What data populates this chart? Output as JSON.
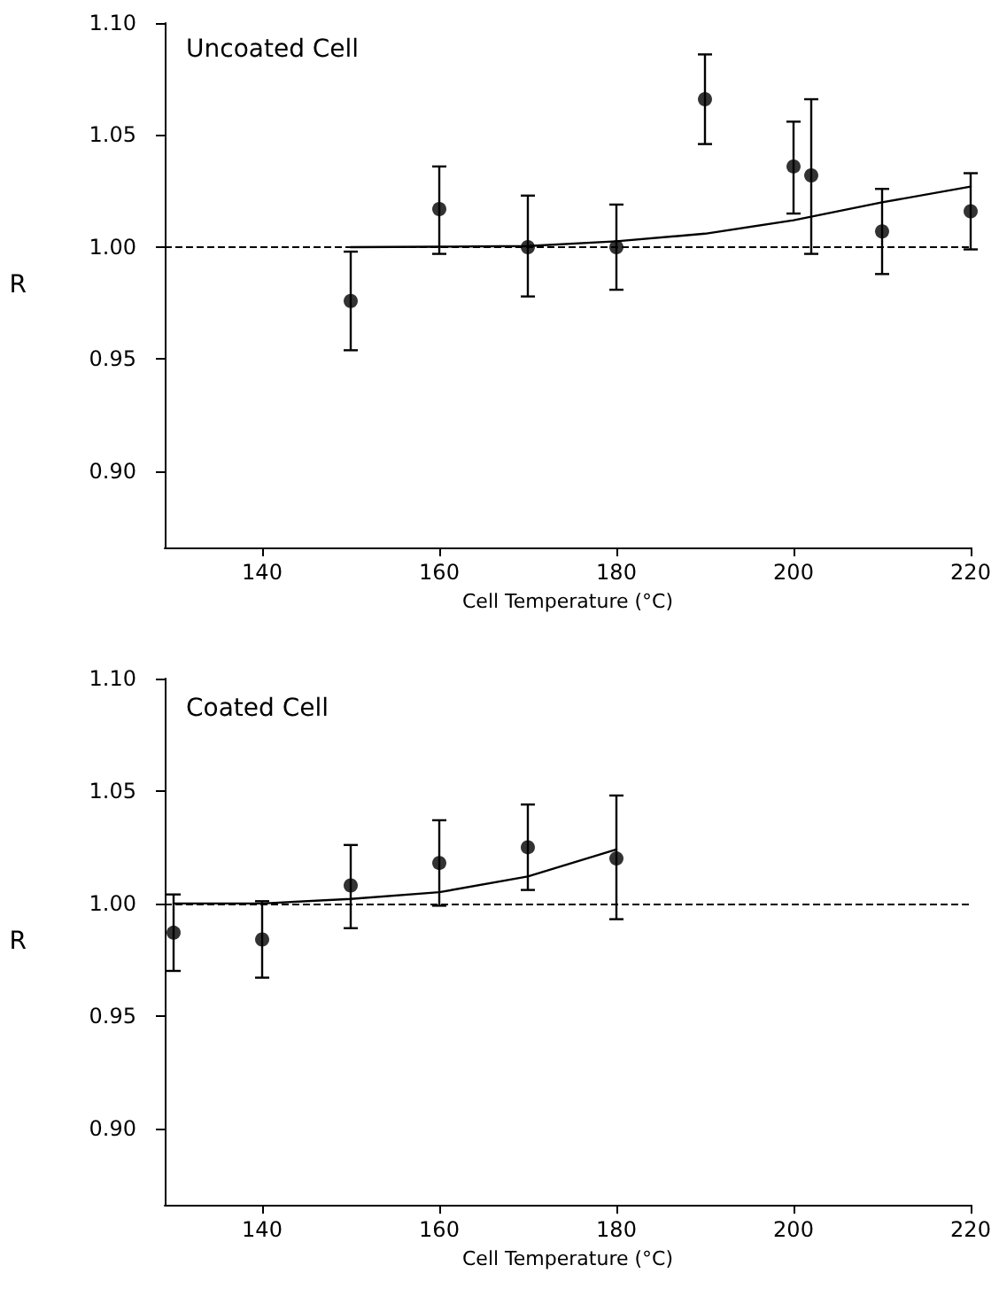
{
  "chart_data": [
    {
      "type": "scatter",
      "title": "Uncoated Cell",
      "xlabel": "Cell Temperature (°C)",
      "ylabel": "R",
      "xlim": [
        129,
        220
      ],
      "ylim": [
        0.866,
        1.1
      ],
      "xticks": [
        140,
        160,
        180,
        200,
        220
      ],
      "yticks": [
        {
          "value": 0.9,
          "label": "0.90"
        },
        {
          "value": 0.95,
          "label": "0.95"
        },
        {
          "value": 1.0,
          "label": "1.00"
        },
        {
          "value": 1.05,
          "label": "1.05"
        },
        {
          "value": 1.1,
          "label": "1.10"
        }
      ],
      "grid": false,
      "ref_lines": [
        {
          "axis": "y",
          "value": 1.0,
          "line_style": "dashed",
          "color": "#000000"
        }
      ],
      "series": [
        {
          "color": "#000000",
          "marker": "circle",
          "x": [
            150,
            160,
            170,
            180,
            190,
            200,
            202,
            210,
            220
          ],
          "values": [
            0.976,
            1.017,
            1.0,
            1.0,
            1.066,
            1.036,
            1.032,
            1.007,
            1.016
          ],
          "errors": [
            [
              0.954,
              0.998
            ],
            [
              0.997,
              1.036
            ],
            [
              0.978,
              1.023
            ],
            [
              0.981,
              1.019
            ],
            [
              1.046,
              1.086
            ],
            [
              1.015,
              1.056
            ],
            [
              0.997,
              1.066
            ],
            [
              0.988,
              1.026
            ],
            [
              0.999,
              1.033
            ]
          ]
        },
        {
          "type": "line",
          "color": "#000000",
          "marker": "none",
          "line_style": "solid",
          "x": [
            150,
            160,
            170,
            180,
            190,
            200,
            210,
            220
          ],
          "values": [
            1.0,
            1.0002,
            1.0005,
            1.0026,
            1.006,
            1.012,
            1.02,
            1.027
          ]
        }
      ]
    },
    {
      "type": "scatter",
      "title": "Coated Cell",
      "xlabel": "Cell Temperature (°C)",
      "ylabel": "R",
      "xlim": [
        129,
        220
      ],
      "ylim": [
        0.866,
        1.1
      ],
      "xticks": [
        140,
        160,
        180,
        200,
        220
      ],
      "yticks": [
        {
          "value": 0.9,
          "label": "0.90"
        },
        {
          "value": 0.95,
          "label": "0.95"
        },
        {
          "value": 1.0,
          "label": "1.00"
        },
        {
          "value": 1.05,
          "label": "1.05"
        },
        {
          "value": 1.1,
          "label": "1.10"
        }
      ],
      "grid": false,
      "ref_lines": [
        {
          "axis": "y",
          "value": 1.0,
          "line_style": "dashed",
          "color": "#000000"
        }
      ],
      "series": [
        {
          "color": "#000000",
          "marker": "circle",
          "x": [
            130,
            140,
            150,
            160,
            170,
            180
          ],
          "values": [
            0.987,
            0.984,
            1.008,
            1.018,
            1.025,
            1.02
          ],
          "errors": [
            [
              0.97,
              1.004
            ],
            [
              0.967,
              1.001
            ],
            [
              0.989,
              1.026
            ],
            [
              0.999,
              1.037
            ],
            [
              1.006,
              1.044
            ],
            [
              0.993,
              1.048
            ]
          ]
        },
        {
          "type": "line",
          "color": "#000000",
          "marker": "none",
          "line_style": "solid",
          "x": [
            130,
            140,
            150,
            160,
            170,
            180
          ],
          "values": [
            1.0,
            1.0,
            1.002,
            1.005,
            1.012,
            1.024
          ]
        }
      ]
    }
  ]
}
